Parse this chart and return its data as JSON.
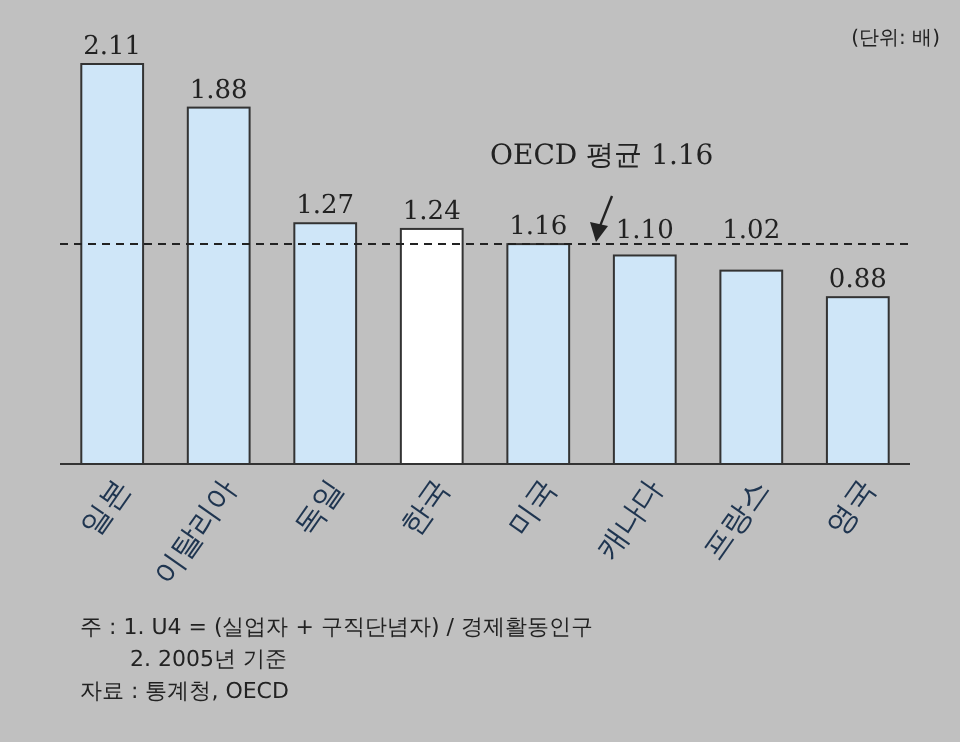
{
  "chart_data": {
    "type": "bar",
    "categories": [
      "일본",
      "이탈리아",
      "독일",
      "한국",
      "미국",
      "캐나다",
      "프랑스",
      "영국"
    ],
    "values": [
      2.11,
      1.88,
      1.27,
      1.24,
      1.16,
      1.1,
      1.02,
      0.88
    ],
    "value_labels": [
      "2.11",
      "1.88",
      "1.27",
      "1.24",
      "1.16",
      "1.10",
      "1.02",
      "0.88"
    ],
    "colors": [
      "#cfe6f8",
      "#cfe6f8",
      "#cfe6f8",
      "#ffffff",
      "#cfe6f8",
      "#cfe6f8",
      "#cfe6f8",
      "#cfe6f8"
    ],
    "ref_lines": [
      {
        "axis": "y",
        "value": 1.16,
        "label": "OECD 평균 1.16",
        "line_style": "dashed",
        "color": "#222222"
      }
    ],
    "annotations": [
      "(단위: 배)",
      "주 : 1. U4 = (실업자 + 구직단념자) / 경제활동인구",
      "2. 2005년 기준",
      "자료 : 통계청, OECD"
    ]
  }
}
